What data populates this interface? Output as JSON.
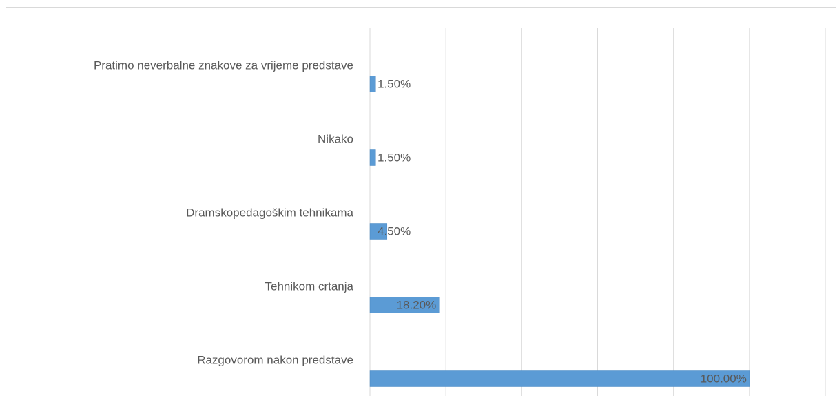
{
  "chart_data": {
    "type": "barh",
    "categories": [
      "Pratimo neverbalne znakove za vrijeme predstave",
      "Nikako",
      "Dramskopedagoškim tehnikama",
      "Tehnikom crtanja",
      "Razgovorom nakon predstave"
    ],
    "values": [
      1.5,
      1.5,
      4.5,
      18.2,
      100
    ],
    "value_labels": [
      "1.50%",
      "1.50%",
      "4.50%",
      "18.20%",
      "100.00%"
    ],
    "color": "#5b9bd5",
    "xlim": [
      0,
      120
    ],
    "xticks": [
      0,
      20,
      40,
      60,
      80,
      100,
      120
    ],
    "grid": true
  }
}
